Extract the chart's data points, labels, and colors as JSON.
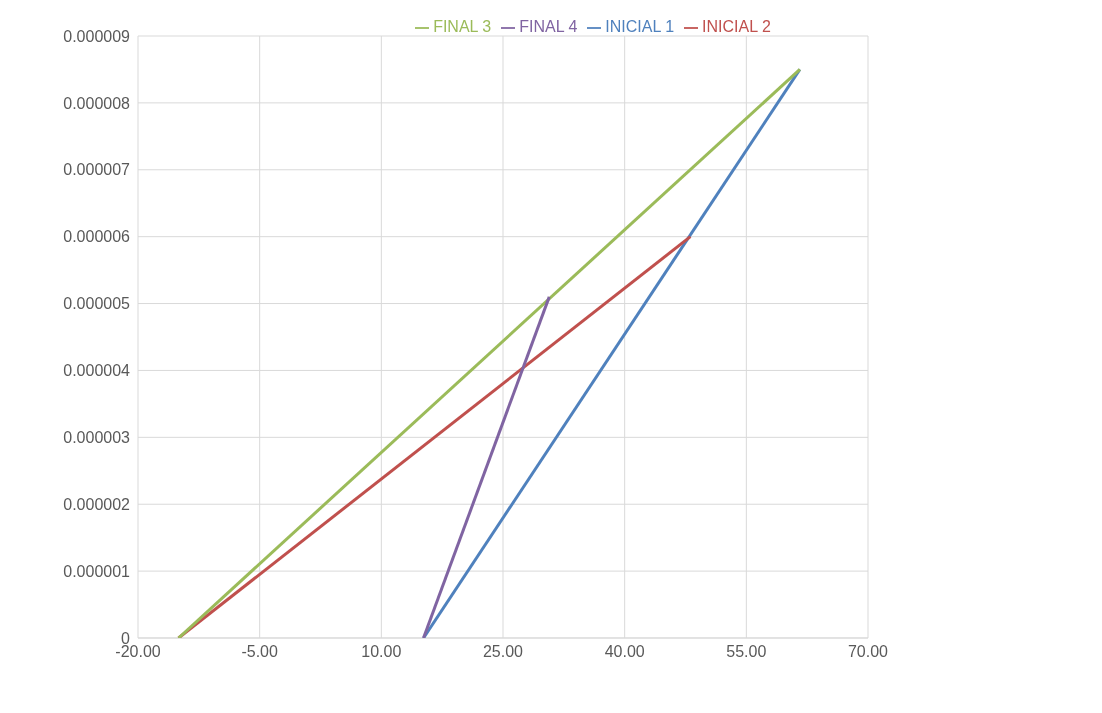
{
  "chart_data": {
    "type": "line",
    "marker": "none",
    "grid": true,
    "legend": "top",
    "xlim": [
      -20,
      70
    ],
    "xticks": [
      {
        "value": -20,
        "label": "-20.00"
      },
      {
        "value": -5,
        "label": "-5.00"
      },
      {
        "value": 10,
        "label": "10.00"
      },
      {
        "value": 25,
        "label": "25.00"
      },
      {
        "value": 40,
        "label": "40.00"
      },
      {
        "value": 55,
        "label": "55.00"
      },
      {
        "value": 70,
        "label": "70.00"
      }
    ],
    "ylim": [
      0,
      9e-06
    ],
    "yticks": [
      {
        "value": 0,
        "label": "0"
      },
      {
        "value": 1e-06,
        "label": "0.000001"
      },
      {
        "value": 2e-06,
        "label": "0.000002"
      },
      {
        "value": 3e-06,
        "label": "0.000003"
      },
      {
        "value": 4e-06,
        "label": "0.000004"
      },
      {
        "value": 5e-06,
        "label": "0.000005"
      },
      {
        "value": 6e-06,
        "label": "0.000006"
      },
      {
        "value": 7e-06,
        "label": "0.000007"
      },
      {
        "value": 8e-06,
        "label": "0.000008"
      },
      {
        "value": 9e-06,
        "label": "0.000009"
      }
    ],
    "series": [
      {
        "name": "INICIAL 1",
        "color": "#4f81bd",
        "x": [
          15.2,
          61.6
        ],
        "values": [
          0,
          8.5e-06
        ]
      },
      {
        "name": "INICIAL 2",
        "color": "#c0504d",
        "x": [
          -15,
          48.1
        ],
        "values": [
          0,
          6e-06
        ]
      },
      {
        "name": "FINAL 3",
        "color": "#9bbb59",
        "x": [
          -15,
          61.6
        ],
        "values": [
          0,
          8.5e-06
        ]
      },
      {
        "name": "FINAL 4",
        "color": "#8064a2",
        "x": [
          15.2,
          30.7
        ],
        "values": [
          0,
          5.1e-06
        ]
      }
    ]
  }
}
